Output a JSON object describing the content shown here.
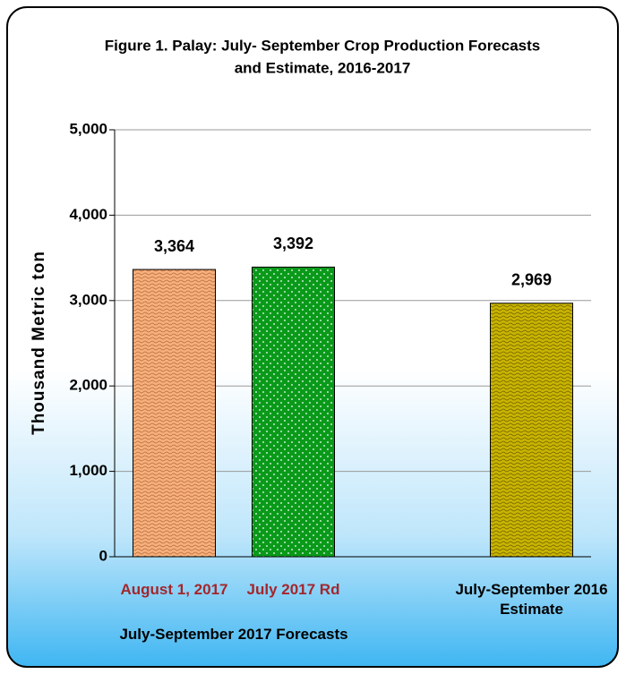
{
  "chart_data": {
    "type": "bar",
    "title": [
      "Figure 1. Palay:  July- September Crop Production Forecasts",
      "and Estimate, 2016-2017"
    ],
    "y_axis_label": "Thousand Metric ton",
    "categories": [
      "August  1, 2017",
      "July 2017 Rd",
      null,
      "July-September  2016 Estimate"
    ],
    "group_label": "July-September 2017 Forecasts",
    "series": [
      {
        "colors": [
          "#f7b07c",
          "#0a9a1a",
          null,
          "#c9b400"
        ],
        "values": [
          3364,
          3392,
          null,
          2969
        ],
        "value_labels": [
          "3,364",
          "3,392",
          null,
          "2,969"
        ]
      }
    ],
    "ylim": [
      0,
      5000
    ],
    "yticks": [
      0,
      {
        "value": 1000,
        "label": "1,000"
      },
      {
        "value": 2000,
        "label": "2,000"
      },
      {
        "value": 3000,
        "label": "3,000"
      },
      {
        "value": 4000,
        "label": "4,000"
      },
      {
        "value": 5000,
        "label": "5,000"
      }
    ],
    "grid": true
  }
}
